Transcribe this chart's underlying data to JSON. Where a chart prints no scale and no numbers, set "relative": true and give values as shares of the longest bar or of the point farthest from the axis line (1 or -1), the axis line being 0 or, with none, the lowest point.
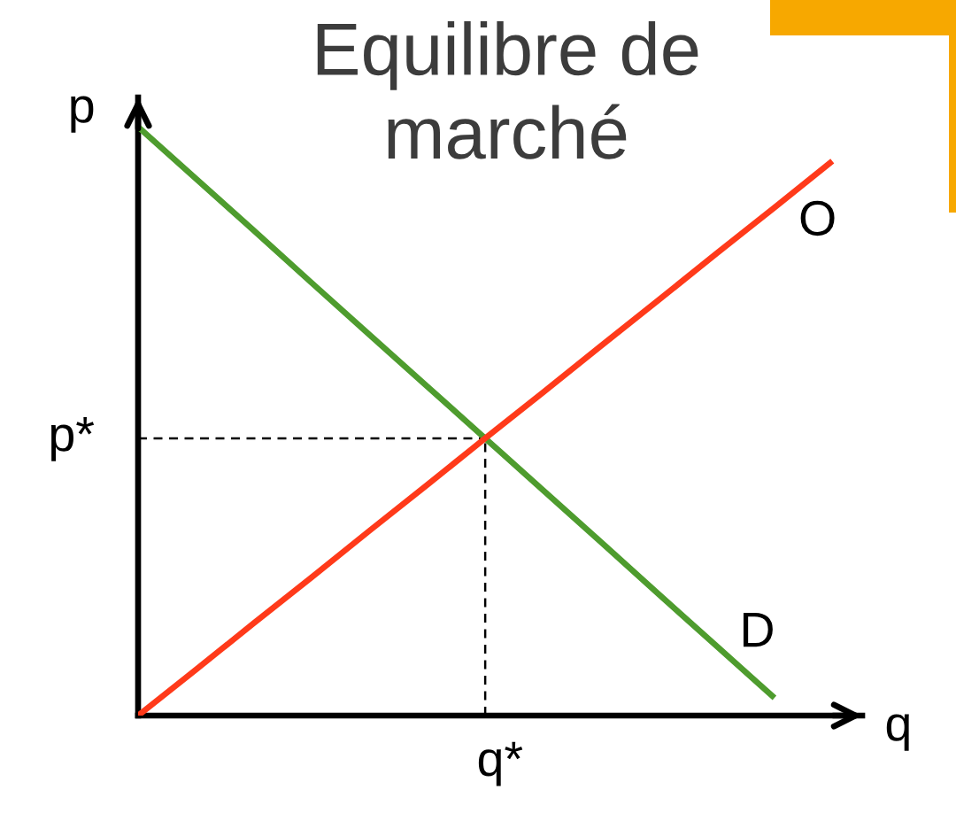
{
  "chart_data": {
    "type": "line",
    "title": "Equilibre de\nmarché",
    "xlabel": "q",
    "ylabel": "p",
    "relative": true,
    "categories": [
      null,
      null,
      null,
      null,
      null,
      null,
      null,
      null,
      null,
      null,
      null,
      null,
      null
    ],
    "series": [
      {
        "name": "D",
        "color": "#4e9c2e",
        "values": [
          1,
          0.912,
          0.824,
          0.735,
          0.647,
          0.559,
          0.471,
          0.383,
          0.295,
          0.206,
          0.118,
          0.03,
          null
        ]
      },
      {
        "name": "O",
        "color": "#ff3a1a",
        "values": [
          0,
          0.078,
          0.157,
          0.235,
          0.314,
          0.392,
          0.471,
          0.549,
          0.628,
          0.706,
          0.785,
          0.863,
          0.942
        ]
      }
    ],
    "ref_lines": [
      {
        "axis": "y",
        "value": 0.471,
        "label": "p*",
        "color": "#000000",
        "line_style": "dashed"
      }
    ],
    "annotations": [
      "q*"
    ]
  }
}
